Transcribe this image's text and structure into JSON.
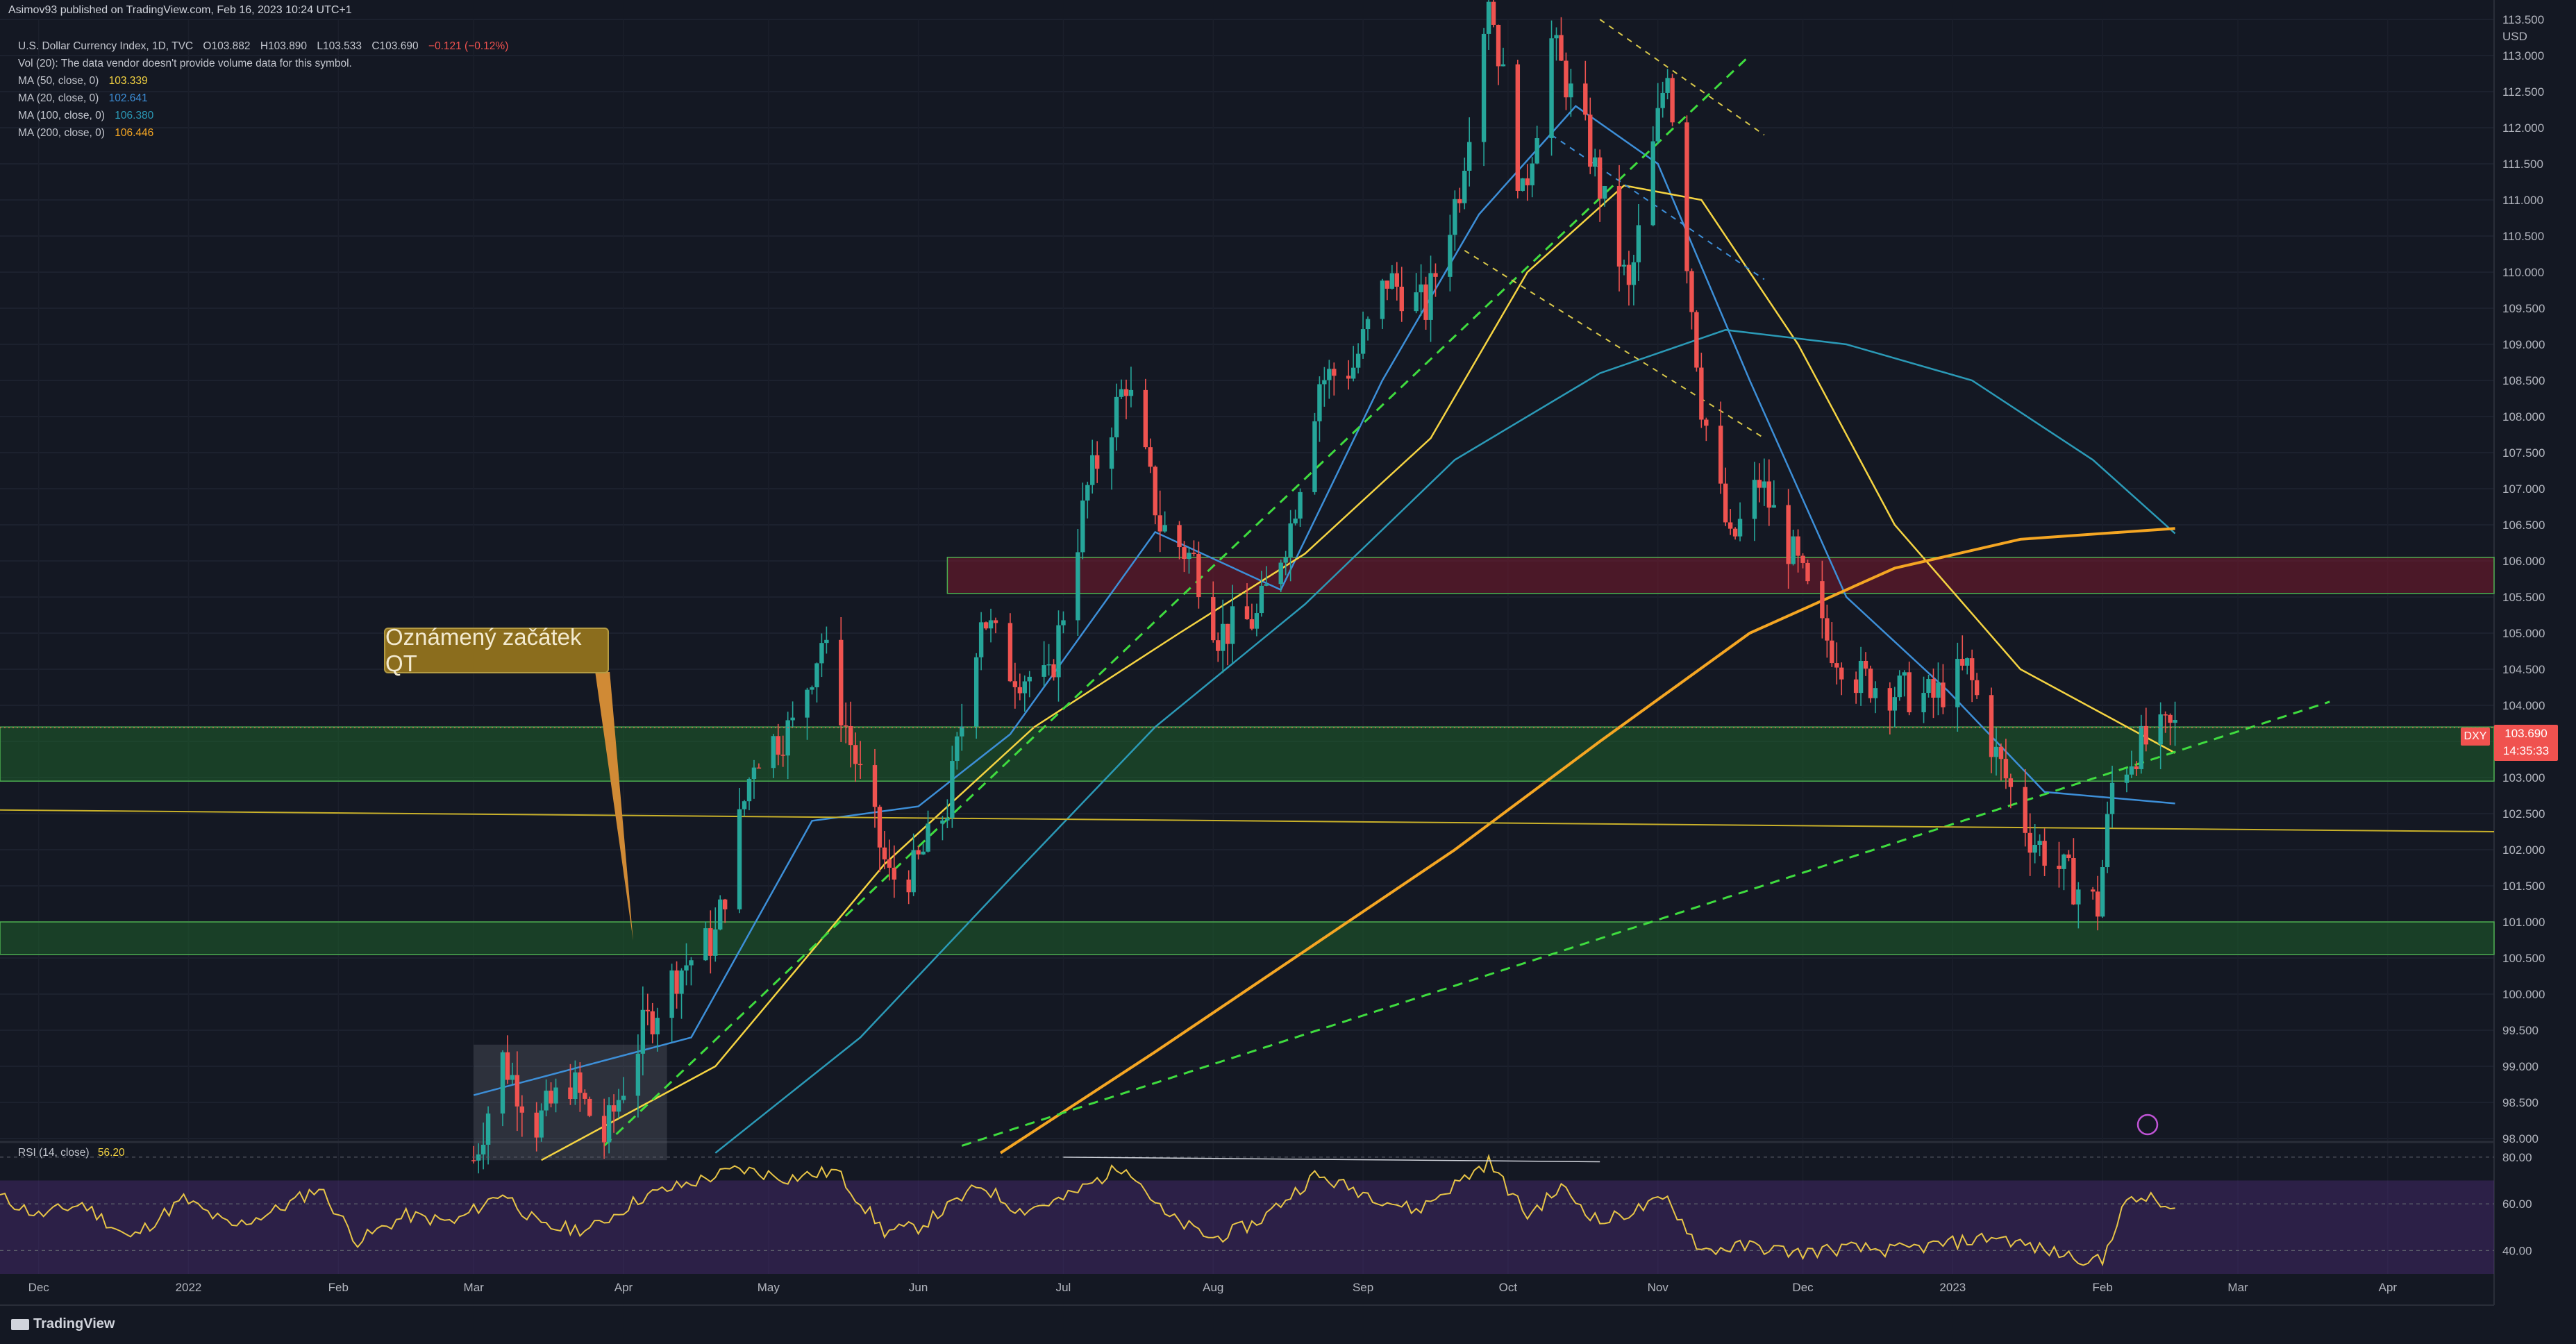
{
  "header": {
    "publisher": "Asimov93 published on TradingView.com, Feb 16, 2023 10:24 UTC+1"
  },
  "info": {
    "title_line": "U.S. Dollar Currency Index, 1D, TVC",
    "ohlc": {
      "o": "O103.882",
      "h": "H103.890",
      "l": "L103.533",
      "c": "C103.690",
      "chg": "−0.121 (−0.12%)"
    },
    "vol_note": "Vol (20): The data vendor doesn't provide volume data for this symbol.",
    "ma": [
      {
        "label": "MA (50, close, 0)",
        "value": "103.339",
        "color": "#f5d442"
      },
      {
        "label": "MA (20, close, 0)",
        "value": "102.641",
        "color": "#3d8fd8"
      },
      {
        "label": "MA (100, close, 0)",
        "value": "106.380",
        "color": "#2b9ab7"
      },
      {
        "label": "MA (200, close, 0)",
        "value": "106.446",
        "color": "#f5a623"
      }
    ]
  },
  "annotation": {
    "text": "Oznámený začátek QT"
  },
  "rsi": {
    "label": "RSI (14, close)",
    "value": "56.20",
    "levels": [
      80,
      60,
      40
    ],
    "range": [
      30,
      85
    ]
  },
  "price_tag": {
    "symbol": "DXY",
    "price": "103.690",
    "countdown": "14:35:33"
  },
  "axis": {
    "currency": "USD"
  },
  "brand": {
    "name": "TradingView"
  },
  "colors": {
    "bg": "#141823",
    "up": "#26a69a",
    "down": "#ef5350",
    "zone_green": "#1f5c2c",
    "zone_red": "#5a1f2a",
    "rsi_band": "#2b1c46"
  },
  "chart_data": {
    "type": "candlestick",
    "symbol": "DXY",
    "timeframe": "1D",
    "ylim": [
      98.0,
      113.5
    ],
    "yticks": [
      "98.000",
      "98.500",
      "99.000",
      "99.500",
      "100.000",
      "100.500",
      "101.000",
      "101.500",
      "102.000",
      "102.500",
      "103.000",
      "103.500",
      "104.000",
      "104.500",
      "105.000",
      "105.500",
      "106.000",
      "106.500",
      "107.000",
      "107.500",
      "108.000",
      "108.500",
      "109.000",
      "109.500",
      "110.000",
      "110.500",
      "111.000",
      "111.500",
      "112.000",
      "112.500",
      "113.000",
      "113.500"
    ],
    "xticks": [
      "Dec",
      "2022",
      "Feb",
      "Mar",
      "Apr",
      "May",
      "Jun",
      "Jul",
      "Aug",
      "Sep",
      "Oct",
      "Nov",
      "Dec",
      "2023",
      "Feb",
      "Mar",
      "Apr"
    ],
    "x_range": [
      "2021-11-23",
      "2023-04-23"
    ],
    "zones": [
      {
        "label": "resistance",
        "from": 105.55,
        "to": 106.05,
        "color": "red"
      },
      {
        "label": "support-high",
        "from": 102.95,
        "to": 103.7,
        "color": "green"
      },
      {
        "label": "support-low",
        "from": 100.55,
        "to": 101.0,
        "color": "green"
      }
    ],
    "price_path": [
      [
        "2022-03-01",
        97.7
      ],
      [
        "2022-03-07",
        99.1
      ],
      [
        "2022-03-14",
        98.2
      ],
      [
        "2022-03-21",
        98.8
      ],
      [
        "2022-03-28",
        98.0
      ],
      [
        "2022-04-05",
        99.5
      ],
      [
        "2022-04-12",
        100.3
      ],
      [
        "2022-04-20",
        100.8
      ],
      [
        "2022-04-28",
        103.3
      ],
      [
        "2022-05-06",
        103.7
      ],
      [
        "2022-05-12",
        104.9
      ],
      [
        "2022-05-20",
        103.0
      ],
      [
        "2022-05-26",
        101.6
      ],
      [
        "2022-05-31",
        101.7
      ],
      [
        "2022-06-07",
        102.6
      ],
      [
        "2022-06-14",
        105.3
      ],
      [
        "2022-06-20",
        104.5
      ],
      [
        "2022-06-28",
        104.3
      ],
      [
        "2022-07-06",
        107.0
      ],
      [
        "2022-07-14",
        108.5
      ],
      [
        "2022-07-21",
        106.5
      ],
      [
        "2022-07-28",
        106.0
      ],
      [
        "2022-08-02",
        105.0
      ],
      [
        "2022-08-10",
        105.2
      ],
      [
        "2022-08-17",
        106.5
      ],
      [
        "2022-08-23",
        108.5
      ],
      [
        "2022-08-30",
        108.7
      ],
      [
        "2022-09-06",
        109.9
      ],
      [
        "2022-09-14",
        109.5
      ],
      [
        "2022-09-21",
        111.2
      ],
      [
        "2022-09-27",
        113.9
      ],
      [
        "2022-10-04",
        111.0
      ],
      [
        "2022-10-10",
        113.2
      ],
      [
        "2022-10-17",
        111.9
      ],
      [
        "2022-10-26",
        109.7
      ],
      [
        "2022-11-03",
        112.9
      ],
      [
        "2022-11-10",
        108.2
      ],
      [
        "2022-11-16",
        106.2
      ],
      [
        "2022-11-22",
        107.1
      ],
      [
        "2022-11-30",
        105.9
      ],
      [
        "2022-12-05",
        105.0
      ],
      [
        "2022-12-12",
        104.4
      ],
      [
        "2022-12-20",
        104.2
      ],
      [
        "2022-12-28",
        104.1
      ],
      [
        "2023-01-04",
        104.5
      ],
      [
        "2023-01-10",
        103.3
      ],
      [
        "2023-01-17",
        102.2
      ],
      [
        "2023-01-25",
        101.6
      ],
      [
        "2023-01-31",
        101.2
      ],
      [
        "2023-02-03",
        102.9
      ],
      [
        "2023-02-08",
        103.4
      ],
      [
        "2023-02-16",
        103.69
      ]
    ],
    "moving_averages": [
      {
        "name": "MA 20",
        "color": "#3d8fd8",
        "points": [
          [
            "2022-03-01",
            98.6
          ],
          [
            "2022-04-15",
            99.4
          ],
          [
            "2022-05-10",
            102.4
          ],
          [
            "2022-06-01",
            102.6
          ],
          [
            "2022-06-20",
            103.6
          ],
          [
            "2022-07-20",
            106.4
          ],
          [
            "2022-08-15",
            105.6
          ],
          [
            "2022-09-05",
            108.5
          ],
          [
            "2022-09-25",
            110.8
          ],
          [
            "2022-10-15",
            112.3
          ],
          [
            "2022-11-01",
            111.5
          ],
          [
            "2022-11-20",
            108.5
          ],
          [
            "2022-12-10",
            105.5
          ],
          [
            "2022-12-31",
            104.2
          ],
          [
            "2023-01-20",
            102.8
          ],
          [
            "2023-02-16",
            102.64
          ]
        ]
      },
      {
        "name": "MA 50",
        "color": "#f5d442",
        "points": [
          [
            "2022-03-15",
            97.7
          ],
          [
            "2022-04-20",
            99.0
          ],
          [
            "2022-05-25",
            101.8
          ],
          [
            "2022-06-25",
            103.7
          ],
          [
            "2022-07-25",
            105.0
          ],
          [
            "2022-08-20",
            106.1
          ],
          [
            "2022-09-15",
            107.7
          ],
          [
            "2022-10-05",
            110.0
          ],
          [
            "2022-10-25",
            111.2
          ],
          [
            "2022-11-10",
            111.0
          ],
          [
            "2022-11-30",
            109.0
          ],
          [
            "2022-12-20",
            106.5
          ],
          [
            "2023-01-15",
            104.5
          ],
          [
            "2023-02-16",
            103.34
          ]
        ]
      },
      {
        "name": "MA 100",
        "color": "#2b9ab7",
        "points": [
          [
            "2022-04-20",
            97.8
          ],
          [
            "2022-05-20",
            99.4
          ],
          [
            "2022-06-20",
            101.6
          ],
          [
            "2022-07-20",
            103.7
          ],
          [
            "2022-08-20",
            105.4
          ],
          [
            "2022-09-20",
            107.4
          ],
          [
            "2022-10-20",
            108.6
          ],
          [
            "2022-11-15",
            109.2
          ],
          [
            "2022-12-10",
            109.0
          ],
          [
            "2023-01-05",
            108.5
          ],
          [
            "2023-01-30",
            107.4
          ],
          [
            "2023-02-16",
            106.38
          ]
        ]
      },
      {
        "name": "MA 200",
        "color": "#f5a623",
        "points": [
          [
            "2022-06-18",
            97.8
          ],
          [
            "2022-07-20",
            99.2
          ],
          [
            "2022-08-20",
            100.6
          ],
          [
            "2022-09-20",
            102.0
          ],
          [
            "2022-10-20",
            103.5
          ],
          [
            "2022-11-20",
            105.0
          ],
          [
            "2022-12-20",
            105.9
          ],
          [
            "2023-01-15",
            106.3
          ],
          [
            "2023-02-16",
            106.45
          ]
        ]
      }
    ],
    "trendlines": [
      {
        "style": "dashed-green",
        "from": [
          "2022-03-28",
          97.9
        ],
        "to": [
          "2022-11-20",
          113.0
        ]
      },
      {
        "style": "dashed-green",
        "from": [
          "2022-06-10",
          97.9
        ],
        "to": [
          "2023-03-20",
          104.05
        ]
      },
      {
        "style": "solid-yellow",
        "from": [
          "2021-11-23",
          102.55
        ],
        "to": [
          "2023-04-23",
          102.25
        ]
      },
      {
        "style": "dashed-yellow",
        "from": [
          "2022-10-20",
          113.5
        ],
        "to": [
          "2022-11-23",
          111.9
        ]
      },
      {
        "style": "dashed-yellow",
        "from": [
          "2022-09-22",
          110.3
        ],
        "to": [
          "2022-11-23",
          107.7
        ]
      },
      {
        "style": "dashed-blue",
        "from": [
          "2022-10-10",
          111.9
        ],
        "to": [
          "2022-11-23",
          109.9
        ]
      }
    ],
    "rsi_series": [
      [
        "2021-11-23",
        63
      ],
      [
        "2021-12-01",
        55
      ],
      [
        "2021-12-10",
        60
      ],
      [
        "2021-12-20",
        45
      ],
      [
        "2021-12-31",
        62
      ],
      [
        "2022-01-10",
        50
      ],
      [
        "2022-01-20",
        58
      ],
      [
        "2022-01-28",
        67
      ],
      [
        "2022-02-05",
        44
      ],
      [
        "2022-02-15",
        55
      ],
      [
        "2022-02-25",
        52
      ],
      [
        "2022-03-07",
        65
      ],
      [
        "2022-03-15",
        50
      ],
      [
        "2022-03-25",
        49
      ],
      [
        "2022-04-05",
        63
      ],
      [
        "2022-04-15",
        69
      ],
      [
        "2022-04-25",
        75
      ],
      [
        "2022-05-05",
        71
      ],
      [
        "2022-05-15",
        74
      ],
      [
        "2022-05-25",
        48
      ],
      [
        "2022-06-01",
        50
      ],
      [
        "2022-06-14",
        68
      ],
      [
        "2022-06-22",
        57
      ],
      [
        "2022-07-01",
        62
      ],
      [
        "2022-07-14",
        77
      ],
      [
        "2022-07-22",
        55
      ],
      [
        "2022-08-01",
        45
      ],
      [
        "2022-08-10",
        52
      ],
      [
        "2022-08-22",
        72
      ],
      [
        "2022-09-01",
        65
      ],
      [
        "2022-09-12",
        57
      ],
      [
        "2022-09-27",
        78
      ],
      [
        "2022-10-05",
        55
      ],
      [
        "2022-10-12",
        67
      ],
      [
        "2022-10-20",
        52
      ],
      [
        "2022-11-03",
        62
      ],
      [
        "2022-11-10",
        40
      ],
      [
        "2022-11-20",
        42
      ],
      [
        "2022-11-30",
        39
      ],
      [
        "2022-12-10",
        41
      ],
      [
        "2022-12-20",
        40
      ],
      [
        "2022-12-31",
        43
      ],
      [
        "2023-01-10",
        46
      ],
      [
        "2023-01-20",
        40
      ],
      [
        "2023-02-01",
        35
      ],
      [
        "2023-02-05",
        59
      ],
      [
        "2023-02-10",
        63
      ],
      [
        "2023-02-16",
        56.2
      ]
    ]
  }
}
